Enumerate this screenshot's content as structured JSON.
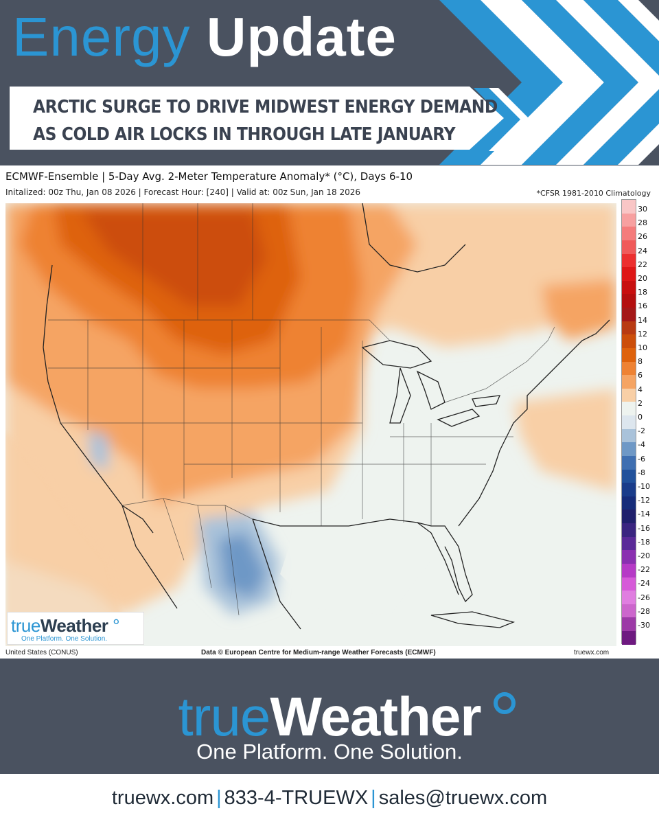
{
  "header": {
    "title_word_1": "Energy",
    "title_word_2": "Update",
    "headline_line_1": "ARCTIC SURGE TO DRIVE MIDWEST ENERGY DEMAND",
    "headline_line_2": "AS COLD AIR LOCKS IN THROUGH LATE JANUARY",
    "colors": {
      "background": "#4a5260",
      "accent": "#2b95d3",
      "chevron_white": "#ffffff"
    }
  },
  "map": {
    "title": "ECMWF-Ensemble | 5-Day Avg. 2-Meter Temperature Anomaly* (°C), Days 6-10",
    "init_line": "Initalized: 00z Thu, Jan 08 2026  |  Forecast Hour: [240]  |  Valid at: 00z Sun, Jan 18 2026",
    "climatology_note": "*CFSR 1981-2010 Climatology",
    "footer_left": "United States (CONUS)",
    "footer_center": "Data © European Centre for Medium-range Weather Forecasts (ECMWF)",
    "footer_right": "truewx.com",
    "region": "United States (CONUS)",
    "colorbar": {
      "unit": "°C",
      "labels": [
        "30",
        "28",
        "26",
        "24",
        "22",
        "20",
        "18",
        "16",
        "14",
        "12",
        "10",
        "8",
        "6",
        "4",
        "2",
        "0",
        "-2",
        "-4",
        "-6",
        "-8",
        "-10",
        "-12",
        "-14",
        "-16",
        "-18",
        "-20",
        "-22",
        "-24",
        "-26",
        "-28",
        "-30"
      ],
      "colors": [
        "#f9c6c6",
        "#f7a0a0",
        "#f47c7c",
        "#f05a5a",
        "#ec2f2f",
        "#de1717",
        "#c80f0f",
        "#b40f0f",
        "#a41818",
        "#b83a12",
        "#cc4e0a",
        "#de620c",
        "#ee8233",
        "#f5a463",
        "#f8cfa6",
        "#eef3ef",
        "#dde6ee",
        "#a9c2da",
        "#6e98c6",
        "#3f6fb1",
        "#21519b",
        "#1a3c8a",
        "#162c7a",
        "#20206c",
        "#3a2580",
        "#5a2a98",
        "#8a2fb0",
        "#b63ac6",
        "#d65ad8",
        "#e07ee0",
        "#cc66cc",
        "#9c3aa6",
        "#6e1a80"
      ]
    },
    "anomaly_fields": [
      {
        "region": "Canadian Prairies / Northern Plains",
        "anomaly_c": 10
      },
      {
        "region": "Central Plains / Upper Midwest",
        "anomaly_c": 6
      },
      {
        "region": "Western US / Intermountain",
        "anomaly_c": 4
      },
      {
        "region": "Southern Plains / Mississippi Valley",
        "anomaly_c": 2
      },
      {
        "region": "Southeast / Mid-Atlantic",
        "anomaly_c": 0
      },
      {
        "region": "Northern Mexico",
        "anomaly_c": -4
      }
    ],
    "logo": {
      "word_1": "true",
      "word_2": "Weather",
      "tagline": "One Platform. One Solution."
    }
  },
  "footer": {
    "brand_word_1": "true",
    "brand_word_2": "Weather",
    "tagline": "One Platform. One Solution.",
    "website": "truewx.com",
    "phone": "833-4-TRUEWX",
    "email": "sales@truewx.com",
    "separator": "|"
  }
}
